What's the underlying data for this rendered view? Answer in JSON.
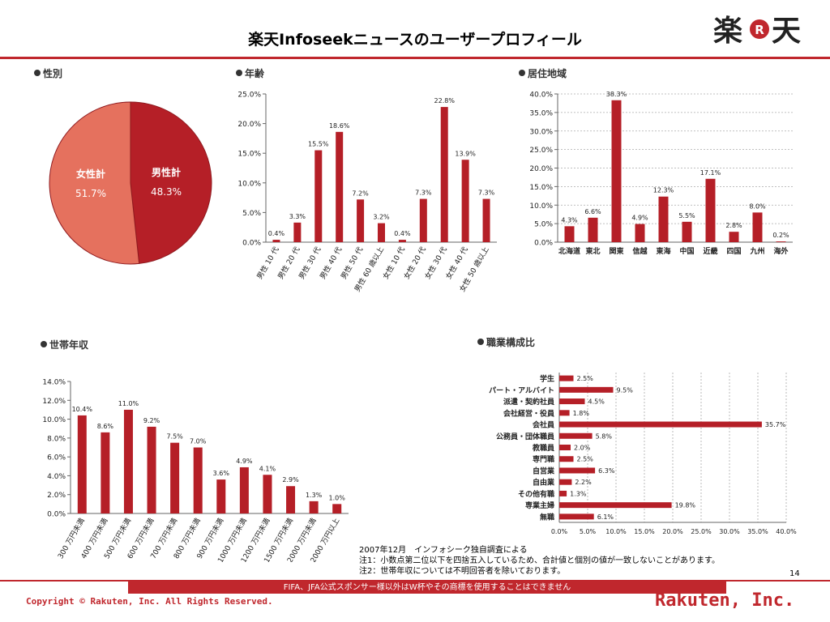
{
  "header": {
    "title": "楽天Infoseekニュースのユーザープロフィール",
    "logo_left": "楽",
    "logo_mark": "R",
    "logo_right": "天"
  },
  "colors": {
    "bar": "#b51f27",
    "pie_male": "#b51f27",
    "pie_female": "#e5715e",
    "accent": "#c0272d"
  },
  "sections": {
    "gender": "性別",
    "age": "年齢",
    "region": "居住地域",
    "income": "世帯年収",
    "occupation": "職業構成比"
  },
  "chart_data": [
    {
      "id": "gender",
      "type": "pie",
      "slices": [
        {
          "label": "男性計",
          "value": 48.3,
          "value_label": "48.3%"
        },
        {
          "label": "女性計",
          "value": 51.7,
          "value_label": "51.7%"
        }
      ]
    },
    {
      "id": "age",
      "type": "bar",
      "categories": [
        "男性 10 代",
        "男性 20 代",
        "男性 30 代",
        "男性 40 代",
        "男性 50 代",
        "男性 60 歳以上",
        "女性 10 代",
        "女性 20 代",
        "女性 30 代",
        "女性 40 代",
        "女性 50 歳以上"
      ],
      "values": [
        0.4,
        3.3,
        15.5,
        18.6,
        7.2,
        3.2,
        0.4,
        7.3,
        22.8,
        13.9,
        7.3
      ],
      "value_labels": [
        "0.4%",
        "3.3%",
        "15.5%",
        "18.6%",
        "7.2%",
        "3.2%",
        "0.4%",
        "7.3%",
        "22.8%",
        "13.9%",
        "7.3%"
      ],
      "ylim": [
        0,
        25
      ],
      "yticks": [
        "0.0%",
        "5.0%",
        "10.0%",
        "15.0%",
        "20.0%",
        "25.0%"
      ],
      "grid": false
    },
    {
      "id": "region",
      "type": "bar",
      "categories": [
        "北海道",
        "東北",
        "関東",
        "信越",
        "東海",
        "中国",
        "近畿",
        "四国",
        "九州",
        "海外"
      ],
      "values": [
        4.3,
        6.6,
        38.3,
        4.9,
        12.3,
        5.5,
        17.1,
        2.8,
        8.0,
        0.2
      ],
      "value_labels": [
        "4.3%",
        "6.6%",
        "38.3%",
        "4.9%",
        "12.3%",
        "5.5%",
        "17.1%",
        "2.8%",
        "8.0%",
        "0.2%"
      ],
      "ylim": [
        0,
        40
      ],
      "yticks": [
        "0.0%",
        "5.0%",
        "10.0%",
        "15.0%",
        "20.0%",
        "25.0%",
        "30.0%",
        "35.0%",
        "40.0%"
      ],
      "grid": true
    },
    {
      "id": "income",
      "type": "bar",
      "categories": [
        "300 万円未満",
        "400 万円未満",
        "500 万円未満",
        "600 万円未満",
        "700 万円未満",
        "800 万円未満",
        "900 万円未満",
        "1000 万円未満",
        "1200 万円未満",
        "1500 万円未満",
        "2000 万円未満",
        "2000 万円以上"
      ],
      "values": [
        10.4,
        8.6,
        11.0,
        9.2,
        7.5,
        7.0,
        3.6,
        4.9,
        4.1,
        2.9,
        1.3,
        1.0
      ],
      "value_labels": [
        "10.4%",
        "8.6%",
        "11.0%",
        "9.2%",
        "7.5%",
        "7.0%",
        "3.6%",
        "4.9%",
        "4.1%",
        "2.9%",
        "1.3%",
        "1.0%"
      ],
      "ylim": [
        0,
        14
      ],
      "yticks": [
        "0.0%",
        "2.0%",
        "4.0%",
        "6.0%",
        "8.0%",
        "10.0%",
        "12.0%",
        "14.0%"
      ],
      "grid": false
    },
    {
      "id": "occupation",
      "type": "bar",
      "orientation": "horizontal",
      "categories": [
        "学生",
        "パート・アルバイト",
        "派遣・契約社員",
        "会社経営・役員",
        "会社員",
        "公務員・団体職員",
        "教職員",
        "専門職",
        "自営業",
        "自由業",
        "その他有職",
        "専業主婦",
        "無職"
      ],
      "values": [
        2.5,
        9.5,
        4.5,
        1.8,
        35.7,
        5.8,
        2.0,
        2.5,
        6.3,
        2.2,
        1.3,
        19.8,
        6.1
      ],
      "value_labels": [
        "2.5%",
        "9.5%",
        "4.5%",
        "1.8%",
        "35.7%",
        "5.8%",
        "2.0%",
        "2.5%",
        "6.3%",
        "2.2%",
        "1.3%",
        "19.8%",
        "6.1%"
      ],
      "xlim": [
        0,
        40
      ],
      "xticks": [
        "0.0%",
        "5.0%",
        "10.0%",
        "15.0%",
        "20.0%",
        "25.0%",
        "30.0%",
        "35.0%",
        "40.0%"
      ],
      "grid": true
    }
  ],
  "notes": [
    "2007年12月　インフォシーク独自調査による",
    "注1：小数点第二位以下を四捨五入しているため、合計値と個別の値が一致しないことがあります。",
    "注2：世帯年収については不明回答者を除いております。"
  ],
  "footer": {
    "page_number": "14",
    "fifa_notice": "FIFA、JFA公式スポンサー様以外はW杯やその商標を使用することはできません",
    "copyright": "Copyright © Rakuten, Inc. All Rights Reserved.",
    "company": "Rakuten, Inc."
  }
}
